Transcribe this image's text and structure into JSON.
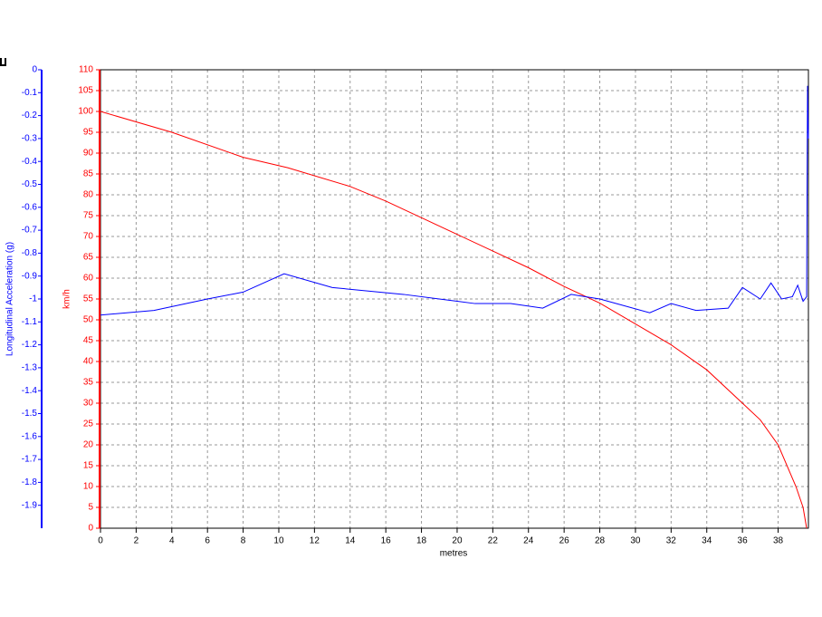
{
  "chart_data": {
    "type": "line",
    "x_label": "metres",
    "y_label": "km/h",
    "y2_label": "Longitudinal Acceleration (g)",
    "xlim": [
      0,
      39.7
    ],
    "xticks": [
      0,
      2,
      4,
      6,
      8,
      10,
      12,
      14,
      16,
      18,
      20,
      22,
      24,
      26,
      28,
      30,
      32,
      34,
      36,
      38
    ],
    "ylim": [
      0,
      110
    ],
    "yticks": [
      0,
      5,
      10,
      15,
      20,
      25,
      30,
      35,
      40,
      45,
      50,
      55,
      60,
      65,
      70,
      75,
      80,
      85,
      90,
      95,
      100,
      105,
      110
    ],
    "y2lim": [
      -2.0,
      0
    ],
    "y2ticks": [
      0,
      -0.1,
      -0.2,
      -0.3,
      -0.4,
      -0.5,
      -0.6,
      -0.7,
      -0.8,
      -0.9,
      -1,
      -1.1,
      -1.2,
      -1.3,
      -1.4,
      -1.5,
      -1.6,
      -1.7,
      -1.8,
      -1.9
    ],
    "grid": true,
    "series": [
      {
        "name": "km/h",
        "color": "#ff0000",
        "x": [
          0,
          4,
          8,
          10.5,
          14,
          16,
          18,
          20,
          22,
          24,
          26,
          28,
          30,
          32,
          34,
          36,
          37,
          38,
          39,
          39.4,
          39.6
        ],
        "values": [
          100,
          95,
          89,
          86.5,
          82,
          78.5,
          74.5,
          70.5,
          66.5,
          62.5,
          58,
          54,
          49,
          44,
          38,
          30,
          26,
          20,
          10,
          5,
          0
        ]
      },
      {
        "name": "Longitudinal Acceleration (g)",
        "color": "#0000ff",
        "axis": "y2",
        "x": [
          0,
          3,
          6,
          8,
          10.3,
          13,
          17,
          19,
          21,
          23,
          24.8,
          26.4,
          28,
          30.8,
          32,
          33.4,
          35.2,
          36,
          37,
          37.6,
          38.2,
          38.8,
          39.1,
          39.4,
          39.6,
          39.65,
          39.7
        ],
        "values": [
          -1.07,
          -1.05,
          -1.0,
          -0.97,
          -0.89,
          -0.95,
          -0.98,
          -1.0,
          -1.02,
          -1.02,
          -1.04,
          -0.98,
          -1.0,
          -1.06,
          -1.02,
          -1.05,
          -1.04,
          -0.95,
          -1.0,
          -0.93,
          -1.0,
          -0.99,
          -0.94,
          -1.01,
          -0.99,
          -0.07,
          -0.3
        ]
      }
    ]
  }
}
